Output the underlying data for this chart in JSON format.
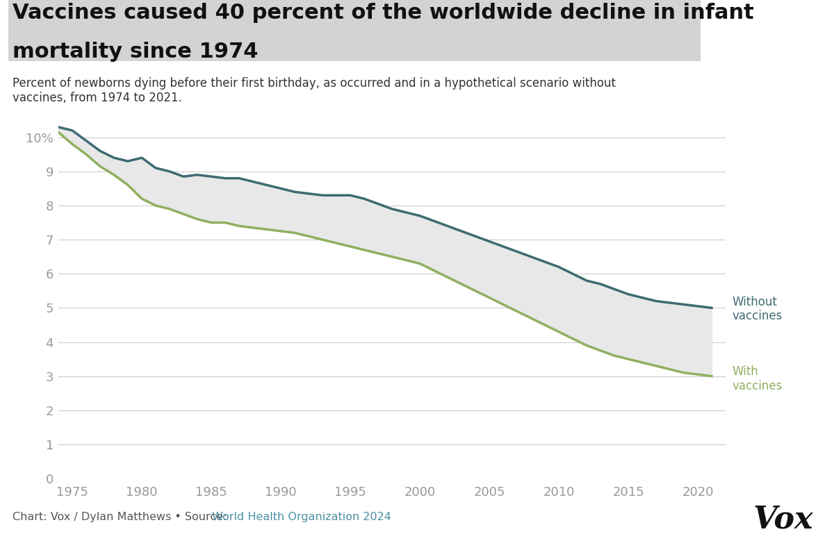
{
  "title_line1": "Vaccines caused 40 percent of the worldwide decline in infant",
  "title_line2": "mortality since 1974",
  "subtitle": "Percent of newborns dying before their first birthday, as occurred and in a hypothetical scenario without\nvaccines, from 1974 to 2021.",
  "footer": "Chart: Vox / Dylan Matthews • Source: ",
  "footer_link": "World Health Organization 2024",
  "title_bg_color": "#d3d3d3",
  "title_color": "#111111",
  "subtitle_color": "#333333",
  "without_vaccines_color": "#3d6b72",
  "with_vaccines_color": "#8faf5f",
  "fill_color": "#e8e8e8",
  "grid_color": "#cccccc",
  "axis_color": "#999999",
  "footer_color": "#555555",
  "footer_link_color": "#4a90a4",
  "background_color": "#ffffff",
  "years_without": [
    1974,
    1975,
    1976,
    1977,
    1978,
    1979,
    1980,
    1981,
    1982,
    1983,
    1984,
    1985,
    1986,
    1987,
    1988,
    1989,
    1990,
    1991,
    1992,
    1993,
    1994,
    1995,
    1996,
    1997,
    1998,
    1999,
    2000,
    2001,
    2002,
    2003,
    2004,
    2005,
    2006,
    2007,
    2008,
    2009,
    2010,
    2011,
    2012,
    2013,
    2014,
    2015,
    2016,
    2017,
    2018,
    2019,
    2020,
    2021
  ],
  "without_vaccines": [
    10.3,
    10.2,
    9.9,
    9.6,
    9.4,
    9.3,
    9.4,
    9.1,
    9.0,
    8.85,
    8.9,
    8.85,
    8.8,
    8.8,
    8.7,
    8.6,
    8.5,
    8.4,
    8.35,
    8.3,
    8.3,
    8.3,
    8.2,
    8.05,
    7.9,
    7.8,
    7.7,
    7.55,
    7.4,
    7.25,
    7.1,
    6.95,
    6.8,
    6.65,
    6.5,
    6.35,
    6.2,
    6.0,
    5.8,
    5.7,
    5.55,
    5.4,
    5.3,
    5.2,
    5.15,
    5.1,
    5.05,
    5.0
  ],
  "years_with": [
    1974,
    1975,
    1976,
    1977,
    1978,
    1979,
    1980,
    1981,
    1982,
    1983,
    1984,
    1985,
    1986,
    1987,
    1988,
    1989,
    1990,
    1991,
    1992,
    1993,
    1994,
    1995,
    1996,
    1997,
    1998,
    1999,
    2000,
    2001,
    2002,
    2003,
    2004,
    2005,
    2006,
    2007,
    2008,
    2009,
    2010,
    2011,
    2012,
    2013,
    2014,
    2015,
    2016,
    2017,
    2018,
    2019,
    2020,
    2021
  ],
  "with_vaccines": [
    10.15,
    9.8,
    9.5,
    9.15,
    8.9,
    8.6,
    8.2,
    8.0,
    7.9,
    7.75,
    7.6,
    7.5,
    7.5,
    7.4,
    7.35,
    7.3,
    7.25,
    7.2,
    7.1,
    7.0,
    6.9,
    6.8,
    6.7,
    6.6,
    6.5,
    6.4,
    6.3,
    6.1,
    5.9,
    5.7,
    5.5,
    5.3,
    5.1,
    4.9,
    4.7,
    4.5,
    4.3,
    4.1,
    3.9,
    3.75,
    3.6,
    3.5,
    3.4,
    3.3,
    3.2,
    3.1,
    3.05,
    3.0
  ],
  "yticks": [
    0,
    1,
    2,
    3,
    4,
    5,
    6,
    7,
    8,
    9,
    10
  ],
  "xticks": [
    1975,
    1980,
    1985,
    1990,
    1995,
    2000,
    2005,
    2010,
    2015,
    2020
  ],
  "ylim": [
    0,
    10.8
  ],
  "xlim": [
    1974,
    2022
  ]
}
